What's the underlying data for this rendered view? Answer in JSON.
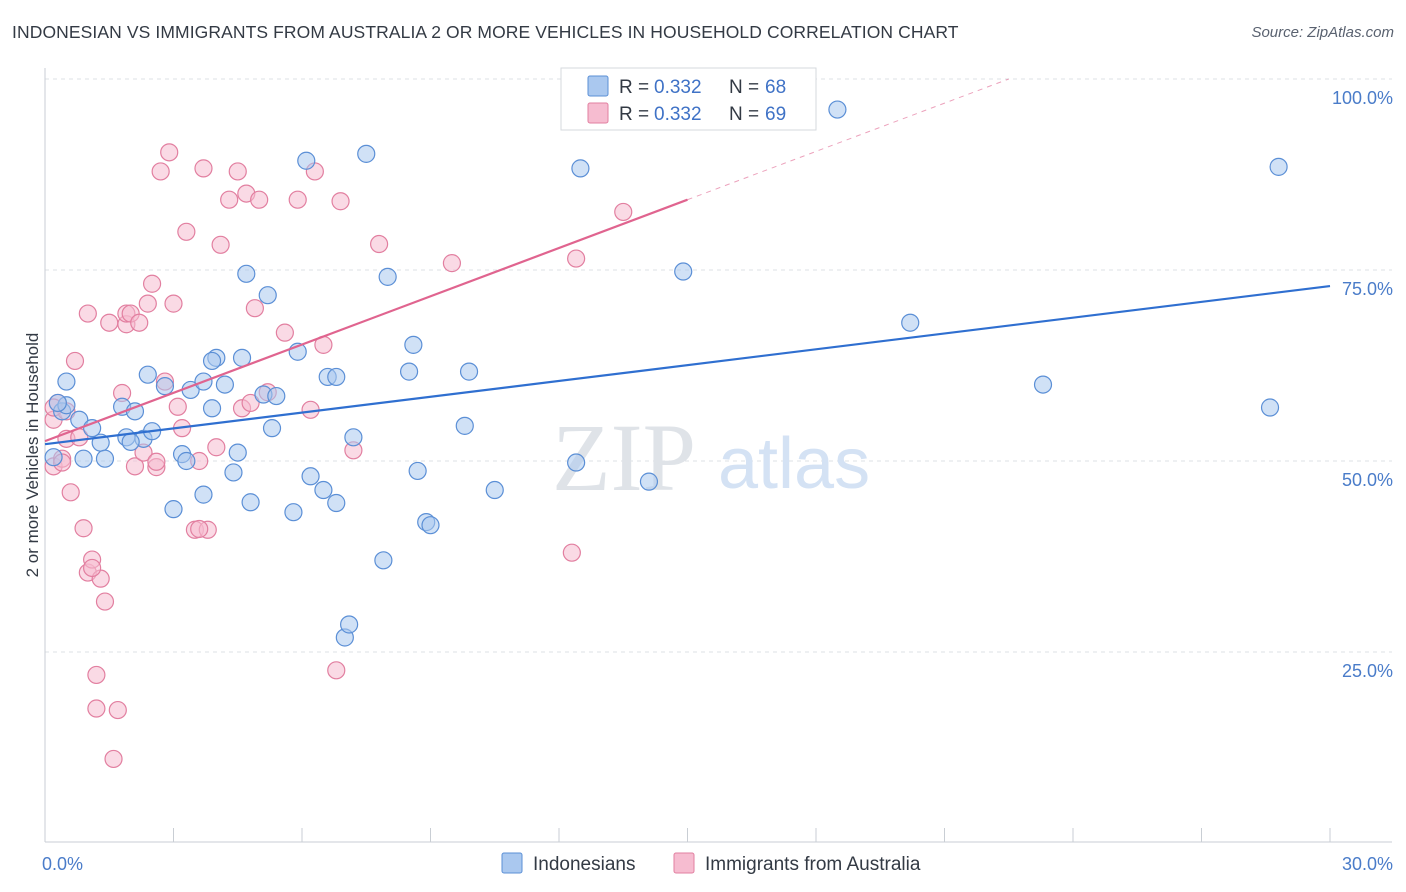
{
  "title": "INDONESIAN VS IMMIGRANTS FROM AUSTRALIA 2 OR MORE VEHICLES IN HOUSEHOLD CORRELATION CHART",
  "source": "Source: ZipAtlas.com",
  "watermark": {
    "zip": "ZIP",
    "atlas": "atlas"
  },
  "colors": {
    "blue_fill": "#aac8ef",
    "blue_stroke": "#5b8fd6",
    "blue_line": "#2f6fd0",
    "pink_fill": "#f6bcd0",
    "pink_stroke": "#e27fa0",
    "pink_line": "#e0648f",
    "grid": "#dde1e6",
    "tick_text": "#4a7cc9"
  },
  "legend": {
    "rows": [
      {
        "r_label": "R =",
        "r_value": "0.332",
        "n_label": "N =",
        "n_value": "68"
      },
      {
        "r_label": "R =",
        "r_value": "0.332",
        "n_label": "N =",
        "n_value": "69"
      }
    ]
  },
  "bottom_legend": [
    "Indonesians",
    "Immigrants from Australia"
  ],
  "chart_data": {
    "type": "scatter",
    "title": "INDONESIAN VS IMMIGRANTS FROM AUSTRALIA 2 OR MORE VEHICLES IN HOUSEHOLD CORRELATION CHART",
    "xlabel": "",
    "ylabel": "2 or more Vehicles in Household",
    "xlim": [
      0,
      30
    ],
    "ylim": [
      0,
      105
    ],
    "x_tick_labels": [
      {
        "value": 0,
        "label": "0.0%"
      },
      {
        "value": 30,
        "label": "30.0%"
      }
    ],
    "y_tick_labels": [
      {
        "value": 25,
        "label": "25.0%"
      },
      {
        "value": 50,
        "label": "50.0%"
      },
      {
        "value": 75,
        "label": "75.0%"
      },
      {
        "value": 100,
        "label": "100.0%"
      }
    ],
    "series": [
      {
        "name": "Indonesians",
        "color": "blue",
        "trend": {
          "x": [
            0,
            30
          ],
          "y": [
            52.2,
            72.9
          ],
          "dashed_to": null
        },
        "points": [
          [
            0.2,
            50.5
          ],
          [
            0.4,
            56.5
          ],
          [
            0.5,
            57.3
          ],
          [
            0.5,
            60.4
          ],
          [
            0.8,
            55.4
          ],
          [
            0.9,
            50.3
          ],
          [
            1.1,
            54.3
          ],
          [
            1.3,
            52.4
          ],
          [
            1.4,
            50.3
          ],
          [
            1.8,
            57.1
          ],
          [
            1.9,
            53.1
          ],
          [
            2.1,
            56.5
          ],
          [
            2.3,
            52.9
          ],
          [
            2.4,
            61.3
          ],
          [
            2.5,
            53.9
          ],
          [
            2.8,
            59.8
          ],
          [
            3.0,
            43.7
          ],
          [
            3.2,
            50.9
          ],
          [
            3.3,
            50.0
          ],
          [
            3.4,
            59.3
          ],
          [
            3.7,
            45.6
          ],
          [
            3.7,
            60.4
          ],
          [
            3.9,
            56.9
          ],
          [
            4.0,
            63.5
          ],
          [
            4.2,
            60.0
          ],
          [
            4.4,
            48.5
          ],
          [
            4.5,
            51.1
          ],
          [
            4.6,
            63.5
          ],
          [
            4.7,
            74.5
          ],
          [
            4.8,
            44.6
          ],
          [
            5.1,
            58.7
          ],
          [
            5.2,
            71.7
          ],
          [
            5.3,
            54.3
          ],
          [
            5.4,
            58.5
          ],
          [
            5.8,
            43.3
          ],
          [
            5.9,
            64.3
          ],
          [
            6.1,
            89.3
          ],
          [
            6.2,
            48.0
          ],
          [
            6.5,
            46.2
          ],
          [
            6.6,
            61.0
          ],
          [
            6.8,
            44.5
          ],
          [
            7.0,
            26.9
          ],
          [
            7.1,
            28.6
          ],
          [
            7.2,
            53.1
          ],
          [
            7.5,
            90.2
          ],
          [
            7.9,
            37.0
          ],
          [
            8.0,
            74.1
          ],
          [
            8.5,
            61.7
          ],
          [
            8.6,
            65.2
          ],
          [
            8.7,
            48.7
          ],
          [
            8.9,
            42.0
          ],
          [
            9.0,
            41.6
          ],
          [
            9.8,
            54.6
          ],
          [
            9.9,
            61.7
          ],
          [
            10.5,
            46.2
          ],
          [
            12.4,
            49.8
          ],
          [
            12.5,
            88.3
          ],
          [
            14.1,
            47.3
          ],
          [
            14.9,
            74.8
          ],
          [
            18.5,
            96.0
          ],
          [
            20.2,
            68.1
          ],
          [
            23.3,
            60.0
          ],
          [
            28.6,
            57.0
          ],
          [
            28.8,
            88.5
          ],
          [
            0.3,
            57.6
          ],
          [
            2.0,
            52.5
          ],
          [
            3.9,
            63.1
          ],
          [
            6.8,
            61.0
          ]
        ]
      },
      {
        "name": "Immigrants from Australia",
        "color": "pink",
        "trend": {
          "x": [
            0,
            15
          ],
          "y": [
            52.6,
            84.2
          ],
          "dashed_to": [
            22.5,
            100.0
          ]
        },
        "points": [
          [
            0.2,
            55.4
          ],
          [
            0.2,
            49.3
          ],
          [
            0.3,
            57.6
          ],
          [
            0.4,
            50.3
          ],
          [
            0.5,
            56.5
          ],
          [
            0.5,
            52.9
          ],
          [
            0.6,
            45.9
          ],
          [
            0.7,
            63.1
          ],
          [
            0.8,
            53.1
          ],
          [
            0.9,
            41.2
          ],
          [
            1.0,
            35.4
          ],
          [
            1.0,
            69.3
          ],
          [
            1.1,
            37.1
          ],
          [
            1.2,
            22.0
          ],
          [
            1.2,
            17.6
          ],
          [
            1.3,
            34.6
          ],
          [
            1.4,
            31.6
          ],
          [
            1.5,
            68.1
          ],
          [
            1.6,
            11.0
          ],
          [
            1.7,
            17.4
          ],
          [
            1.8,
            58.9
          ],
          [
            1.9,
            67.9
          ],
          [
            1.9,
            69.3
          ],
          [
            2.0,
            69.3
          ],
          [
            2.1,
            49.3
          ],
          [
            2.2,
            68.1
          ],
          [
            2.3,
            51.1
          ],
          [
            2.4,
            70.6
          ],
          [
            2.5,
            73.2
          ],
          [
            2.6,
            49.2
          ],
          [
            2.7,
            87.9
          ],
          [
            2.8,
            60.4
          ],
          [
            2.9,
            90.4
          ],
          [
            3.0,
            70.6
          ],
          [
            3.1,
            57.1
          ],
          [
            3.2,
            54.3
          ],
          [
            3.3,
            80.0
          ],
          [
            3.5,
            41.0
          ],
          [
            3.6,
            50.0
          ],
          [
            3.7,
            88.3
          ],
          [
            3.8,
            41.0
          ],
          [
            4.0,
            51.8
          ],
          [
            4.1,
            78.3
          ],
          [
            4.3,
            84.2
          ],
          [
            4.5,
            87.9
          ],
          [
            4.6,
            56.9
          ],
          [
            4.7,
            85.0
          ],
          [
            4.8,
            57.6
          ],
          [
            4.9,
            70.0
          ],
          [
            5.0,
            84.2
          ],
          [
            5.2,
            59.0
          ],
          [
            5.6,
            66.8
          ],
          [
            5.9,
            84.2
          ],
          [
            6.2,
            56.7
          ],
          [
            6.3,
            87.9
          ],
          [
            6.5,
            65.2
          ],
          [
            6.8,
            22.6
          ],
          [
            6.9,
            84.0
          ],
          [
            7.2,
            51.4
          ],
          [
            7.8,
            78.4
          ],
          [
            9.5,
            75.9
          ],
          [
            12.3,
            38.0
          ],
          [
            12.4,
            76.5
          ],
          [
            13.5,
            82.6
          ],
          [
            0.2,
            57.0
          ],
          [
            0.4,
            49.8
          ],
          [
            1.1,
            36.0
          ],
          [
            2.6,
            49.9
          ],
          [
            3.6,
            41.1
          ]
        ]
      }
    ]
  }
}
